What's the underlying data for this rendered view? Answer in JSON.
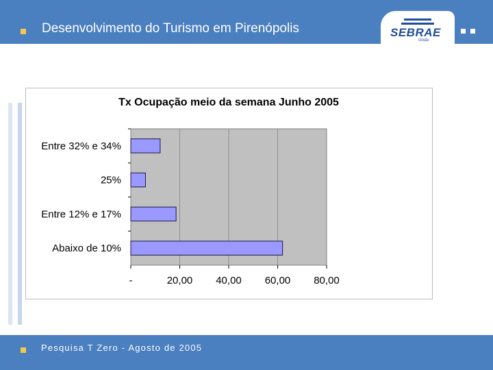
{
  "header": {
    "title": "Desenvolvimento do Turismo em Pirenópolis"
  },
  "logo": {
    "name": "SEBRAE",
    "sub": "Goiás"
  },
  "footer": {
    "text": "Pesquisa T Zero  -  Agosto de 2005"
  },
  "colors": {
    "bar": "#9999ff",
    "plot_bg": "#c0c0c0",
    "header": "#4a7fc0"
  },
  "chart_data": {
    "type": "bar",
    "orientation": "horizontal",
    "title": "Tx Ocupação meio da semana Junho 2005",
    "categories": [
      "Entre 32% e 34%",
      "25%",
      "Entre 12% e 17%",
      "Abaixo de 10%"
    ],
    "values": [
      12,
      6,
      18.5,
      62
    ],
    "xlim": [
      0,
      80
    ],
    "xticks": [
      "-",
      "20,00",
      "40,00",
      "60,00",
      "80,00"
    ],
    "xlabel": "",
    "ylabel": "",
    "grid": true,
    "legend": "none"
  }
}
